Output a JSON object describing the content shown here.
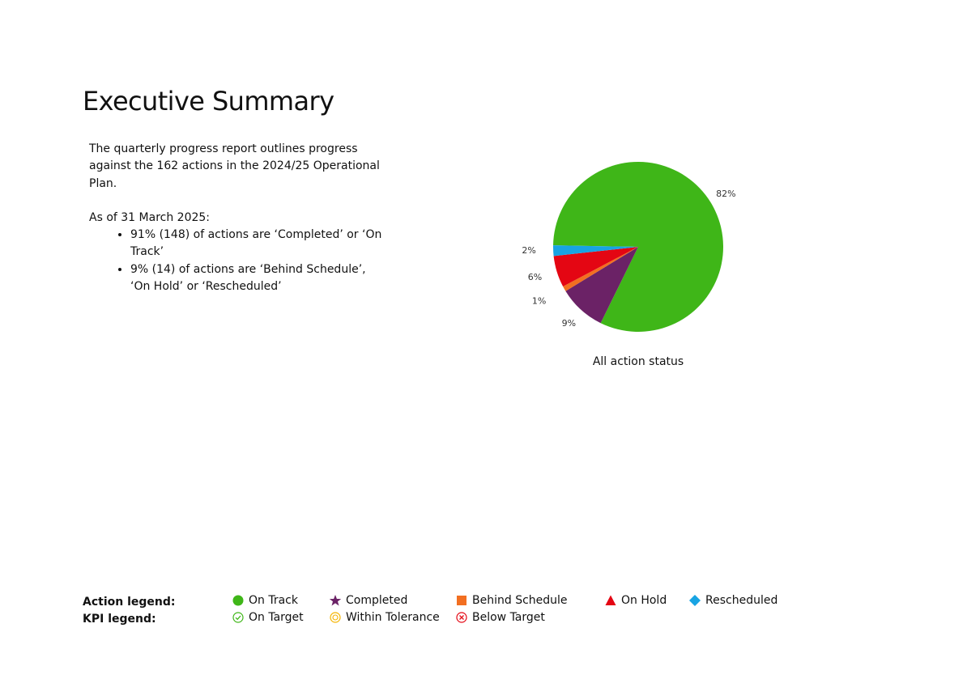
{
  "title": "Executive Summary",
  "summary": {
    "intro": "The quarterly progress report outlines progress against the 162 actions in the 2024/25 Operational Plan.",
    "as_of": "As of 31 March 2025:",
    "bullets": [
      "91% (148) of actions are ‘Completed’ or ‘On Track’",
      "9% (14) of actions are ‘Behind Schedule’, ‘On Hold’ or ‘Rescheduled’"
    ]
  },
  "chart_data": {
    "type": "pie",
    "title": "All action status",
    "slices": [
      {
        "label": "82%",
        "value": 82,
        "color": "#3fb618"
      },
      {
        "label": "9%",
        "value": 9,
        "color": "#6b2266"
      },
      {
        "label": "1%",
        "value": 1,
        "color": "#f26f21"
      },
      {
        "label": "6%",
        "value": 6,
        "color": "#e40613"
      },
      {
        "label": "2%",
        "value": 2,
        "color": "#18a4e3"
      }
    ]
  },
  "legend": {
    "action_title": "Action legend:",
    "kpi_title": "KPI legend:",
    "action_items": [
      {
        "label": "On Track",
        "icon": "green-circle-icon",
        "color": "#3fb618"
      },
      {
        "label": "Completed",
        "icon": "purple-star-icon",
        "color": "#6b2266"
      },
      {
        "label": "Behind Schedule",
        "icon": "orange-square-icon",
        "color": "#f26f21"
      },
      {
        "label": "On Hold",
        "icon": "red-triangle-icon",
        "color": "#e40613"
      },
      {
        "label": "Rescheduled",
        "icon": "blue-diamond-icon",
        "color": "#18a4e3"
      }
    ],
    "kpi_items": [
      {
        "label": "On Target",
        "icon": "check-circle-icon",
        "color": "#3fb618"
      },
      {
        "label": "Within Tolerance",
        "icon": "target-circle-icon",
        "color": "#f5b400"
      },
      {
        "label": "Below Target",
        "icon": "cross-circle-icon",
        "color": "#e40613"
      }
    ]
  }
}
